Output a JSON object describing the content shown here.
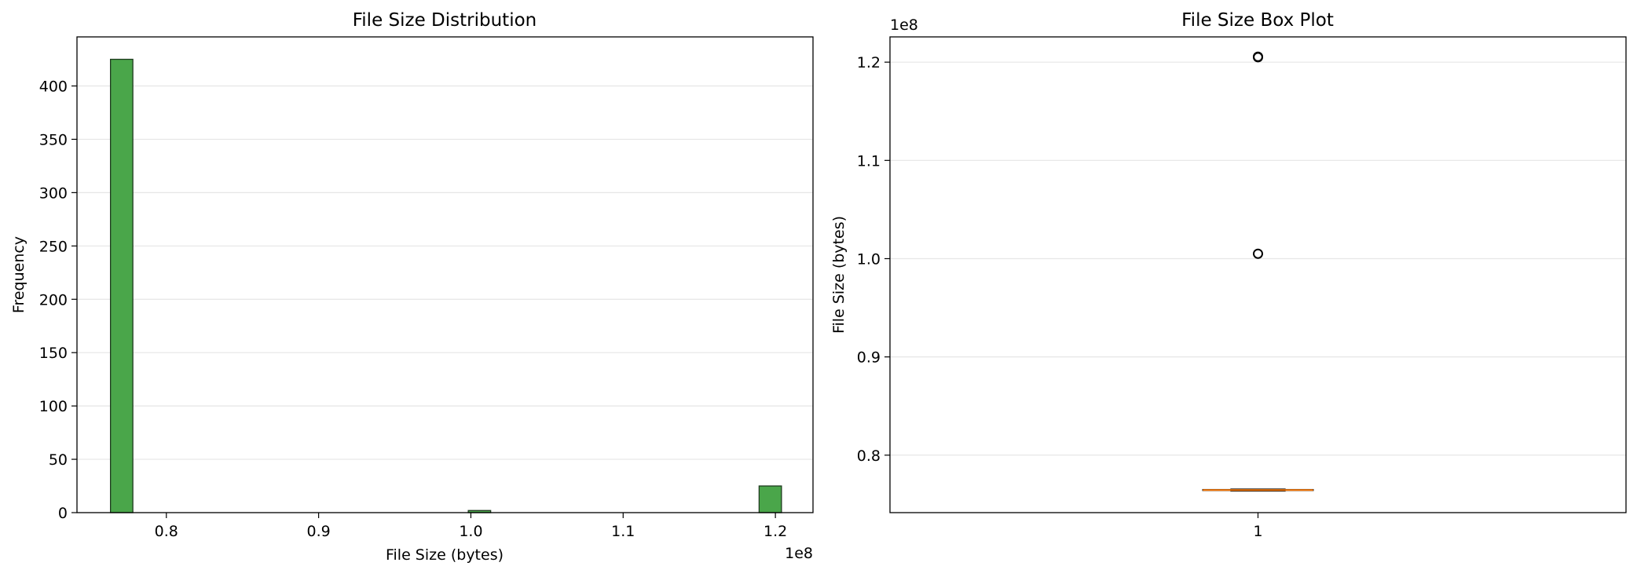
{
  "colors": {
    "bar_fill": "#4aa64a",
    "bar_edge": "#1f3a1f",
    "grid": "#e6e6e6",
    "median": "#ff7f0e",
    "flier": "#000000"
  },
  "chart_data": [
    {
      "type": "bar",
      "chart_kind": "histogram",
      "title": "File Size Distribution",
      "xlabel": "File Size (bytes)",
      "ylabel": "Frequency",
      "x_offset_label": "1e8",
      "xlim": [
        0.7413,
        1.2247
      ],
      "ylim": [
        0,
        446
      ],
      "xticks": [
        0.8,
        0.9,
        1.0,
        1.1,
        1.2
      ],
      "xtick_labels": [
        "0.8",
        "0.9",
        "1.0",
        "1.1",
        "1.2"
      ],
      "yticks": [
        0,
        50,
        100,
        150,
        200,
        250,
        300,
        350,
        400
      ],
      "ytick_labels": [
        "0",
        "50",
        "100",
        "150",
        "200",
        "250",
        "300",
        "350",
        "400"
      ],
      "grid": "y",
      "bins": [
        {
          "x0": 0.7633,
          "x1": 0.778,
          "value": 425
        },
        {
          "x0": 0.9983,
          "x1": 1.013,
          "value": 2
        },
        {
          "x0": 1.1893,
          "x1": 1.204,
          "value": 25
        }
      ]
    },
    {
      "type": "box",
      "title": "File Size Box Plot",
      "ylabel": "File Size (bytes)",
      "y_offset_label": "1e8",
      "xlim": [
        0.5,
        1.5
      ],
      "ylim": [
        0.7415,
        1.2257
      ],
      "xticks": [
        1
      ],
      "xtick_labels": [
        "1"
      ],
      "yticks": [
        0.8,
        0.9,
        1.0,
        1.1,
        1.2
      ],
      "ytick_labels": [
        "0.8",
        "0.9",
        "1.0",
        "1.1",
        "1.2"
      ],
      "grid": "y",
      "box": {
        "position": 1,
        "q1": 0.764,
        "median": 0.7645,
        "q3": 0.765,
        "whisker_low": 0.7635,
        "whisker_high": 0.7655
      },
      "outliers": [
        1.205,
        1.2055,
        1.005
      ]
    }
  ]
}
